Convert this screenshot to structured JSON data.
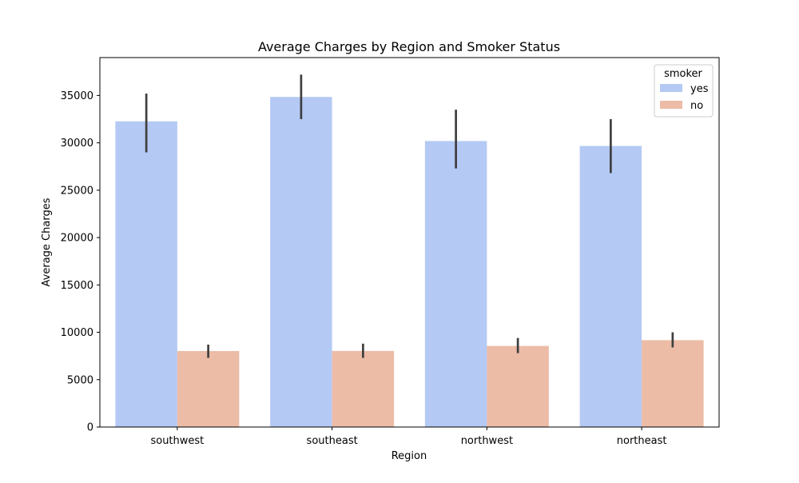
{
  "chart_data": {
    "type": "bar",
    "title": "Average Charges by Region and Smoker Status",
    "xlabel": "Region",
    "ylabel": "Average Charges",
    "categories": [
      "southwest",
      "southeast",
      "northwest",
      "northeast"
    ],
    "ylim": [
      0,
      39000
    ],
    "yticks": [
      0,
      5000,
      10000,
      15000,
      20000,
      25000,
      30000,
      35000
    ],
    "ytick_labels": [
      "0",
      "5000",
      "10000",
      "15000",
      "20000",
      "25000",
      "30000",
      "35000"
    ],
    "grid": false,
    "legend": {
      "title": "smoker",
      "placement": "top-right"
    },
    "series": [
      {
        "name": "yes",
        "color": "#b4c9f4",
        "values": [
          32270,
          34845,
          30192,
          29674
        ],
        "ci_low": [
          29000,
          32500,
          27300,
          26800
        ],
        "ci_high": [
          35200,
          37200,
          33500,
          32500
        ]
      },
      {
        "name": "no",
        "color": "#ecbca7",
        "values": [
          8020,
          8030,
          8560,
          9170
        ],
        "ci_low": [
          7300,
          7300,
          7800,
          8400
        ],
        "ci_high": [
          8700,
          8800,
          9400,
          10000
        ]
      }
    ],
    "errorbar_color": "#3f3f3f"
  }
}
